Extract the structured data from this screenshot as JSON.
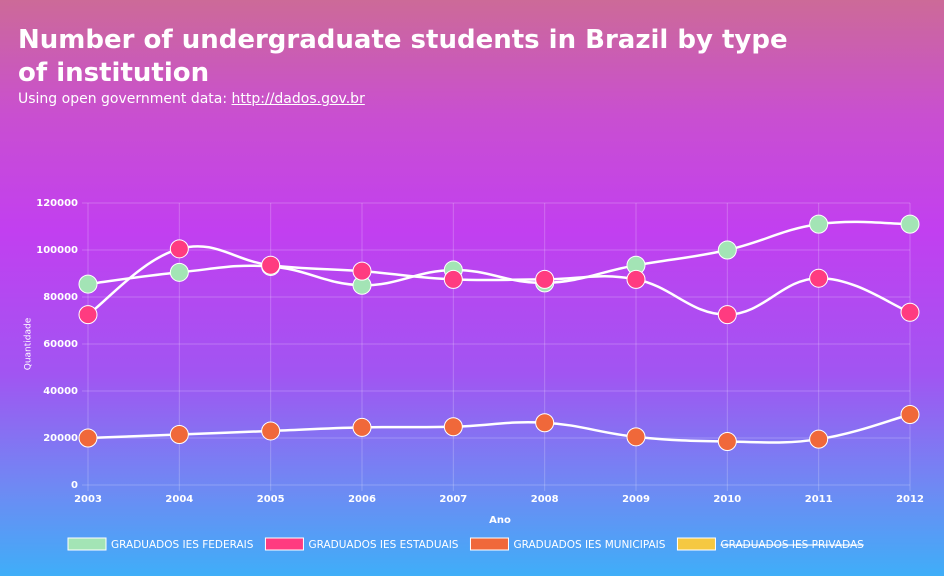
{
  "header": {
    "title": "Number of undergraduate students in Brazil by type of institution",
    "subtitle": "Using open government data:",
    "link": "http://dados.gov.br"
  },
  "chart_data": {
    "type": "line",
    "smooth": true,
    "grid": true,
    "legend": "bottom",
    "x_label": "Ano",
    "y_label": "Quantidade",
    "x": [
      2003,
      2004,
      2005,
      2006,
      2007,
      2008,
      2009,
      2010,
      2011,
      2012
    ],
    "xlim": [
      2003,
      2012
    ],
    "xticks": [
      2003,
      2004,
      2005,
      2006,
      2007,
      2008,
      2009,
      2010,
      2011,
      2012
    ],
    "ylim": [
      0,
      120000
    ],
    "yticks": [
      0,
      20000,
      40000,
      60000,
      80000,
      100000,
      120000
    ],
    "series": [
      {
        "name": "GRADUADOS IES FEDERAIS",
        "color": "#a3e4b5",
        "values": [
          85500,
          90500,
          93000,
          85000,
          91500,
          86000,
          93500,
          100000,
          111000,
          111000
        ]
      },
      {
        "name": "GRADUADOS IES ESTADUAIS",
        "color": "#ff3b80",
        "values": [
          72500,
          100500,
          93500,
          91000,
          87500,
          87500,
          87500,
          72500,
          88000,
          73500
        ]
      },
      {
        "name": "GRADUADOS IES MUNICIPAIS",
        "color": "#f0683a",
        "values": [
          20000,
          21500,
          23000,
          24500,
          24800,
          26500,
          20500,
          18500,
          19500,
          30000
        ]
      },
      {
        "name": "GRADUADOS IES PRIVADAS",
        "color": "#f5c842",
        "hidden": true,
        "values": [
          null,
          null,
          null,
          null,
          null,
          null,
          null,
          null,
          null,
          null
        ]
      }
    ]
  }
}
